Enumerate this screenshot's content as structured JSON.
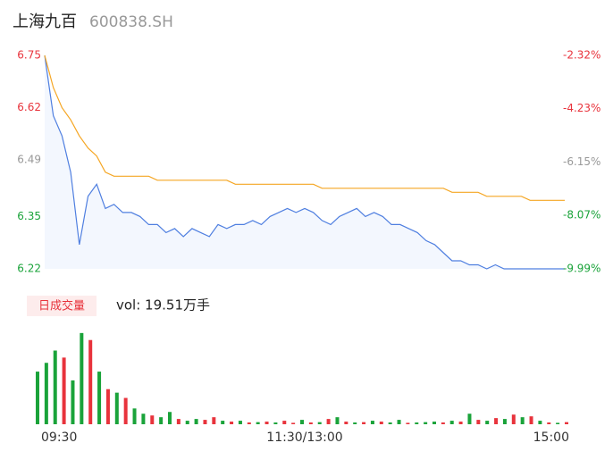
{
  "chart_data": [
    {
      "type": "line",
      "title": "上海九百",
      "subtitle": "600838.SH",
      "xlim": [
        0,
        240
      ],
      "xticks": [
        {
          "value": 0,
          "label": "09:30"
        },
        {
          "value": 120,
          "label": "11:30/13:00"
        },
        {
          "value": 240,
          "label": "15:00"
        }
      ],
      "x": [
        0,
        4,
        8,
        12,
        16,
        20,
        24,
        28,
        32,
        36,
        40,
        44,
        48,
        52,
        56,
        60,
        64,
        68,
        72,
        76,
        80,
        84,
        88,
        92,
        96,
        100,
        104,
        108,
        112,
        116,
        120,
        124,
        128,
        132,
        136,
        140,
        144,
        148,
        152,
        156,
        160,
        164,
        168,
        172,
        176,
        180,
        184,
        188,
        192,
        196,
        200,
        204,
        208,
        212,
        216,
        220,
        224,
        228,
        232,
        236,
        240
      ],
      "ylim": [
        6.22,
        6.75
      ],
      "yticks": [
        6.75,
        6.62,
        6.49,
        6.35,
        6.22
      ],
      "ytick_colors": [
        "#e8333c",
        "#e8333c",
        "#999999",
        "#1aa33a",
        "#1aa33a"
      ],
      "y2lim": [
        -9.99,
        -2.32
      ],
      "y2ticks": [
        {
          "value": -2.32,
          "label": "-2.32%"
        },
        {
          "value": -4.23,
          "label": "-4.23%"
        },
        {
          "value": -6.15,
          "label": "-6.15%"
        },
        {
          "value": -8.07,
          "label": "-8.07%"
        },
        {
          "value": -9.99,
          "label": "-9.99%"
        }
      ],
      "series": [
        {
          "color": "#4f7fe0",
          "area": true,
          "values": [
            6.75,
            6.6,
            6.55,
            6.46,
            6.28,
            6.4,
            6.43,
            6.37,
            6.38,
            6.36,
            6.36,
            6.35,
            6.33,
            6.33,
            6.31,
            6.32,
            6.3,
            6.32,
            6.31,
            6.3,
            6.33,
            6.32,
            6.33,
            6.33,
            6.34,
            6.33,
            6.35,
            6.36,
            6.37,
            6.36,
            6.37,
            6.36,
            6.34,
            6.33,
            6.35,
            6.36,
            6.37,
            6.35,
            6.36,
            6.35,
            6.33,
            6.33,
            6.32,
            6.31,
            6.29,
            6.28,
            6.26,
            6.24,
            6.24,
            6.23,
            6.23,
            6.22,
            6.23,
            6.22,
            6.22,
            6.22,
            6.22,
            6.22,
            6.22,
            6.22,
            6.22
          ]
        },
        {
          "color": "#f5a623",
          "area": false,
          "values": [
            6.75,
            6.67,
            6.62,
            6.59,
            6.55,
            6.52,
            6.5,
            6.46,
            6.45,
            6.45,
            6.45,
            6.45,
            6.45,
            6.44,
            6.44,
            6.44,
            6.44,
            6.44,
            6.44,
            6.44,
            6.44,
            6.44,
            6.43,
            6.43,
            6.43,
            6.43,
            6.43,
            6.43,
            6.43,
            6.43,
            6.43,
            6.43,
            6.42,
            6.42,
            6.42,
            6.42,
            6.42,
            6.42,
            6.42,
            6.42,
            6.42,
            6.42,
            6.42,
            6.42,
            6.42,
            6.42,
            6.42,
            6.41,
            6.41,
            6.41,
            6.41,
            6.4,
            6.4,
            6.4,
            6.4,
            6.4,
            6.39,
            6.39,
            6.39,
            6.39,
            6.39
          ]
        }
      ]
    },
    {
      "type": "bar",
      "title": "日成交量",
      "subtitle": "vol: 19.51万手",
      "xlim": [
        0,
        240
      ],
      "x": [
        0,
        4,
        8,
        12,
        16,
        20,
        24,
        28,
        32,
        36,
        40,
        44,
        48,
        52,
        56,
        60,
        64,
        68,
        72,
        76,
        80,
        84,
        88,
        92,
        96,
        100,
        104,
        108,
        112,
        116,
        120,
        124,
        128,
        132,
        136,
        140,
        144,
        148,
        152,
        156,
        160,
        164,
        168,
        172,
        176,
        180,
        184,
        188,
        192,
        196,
        200,
        204,
        208,
        212,
        216,
        220,
        224,
        228,
        232,
        236,
        240
      ],
      "ylim": [
        0,
        560
      ],
      "values": [
        300,
        350,
        420,
        380,
        250,
        520,
        480,
        300,
        200,
        180,
        150,
        90,
        60,
        50,
        40,
        70,
        30,
        20,
        30,
        25,
        40,
        20,
        15,
        20,
        10,
        12,
        15,
        10,
        20,
        8,
        25,
        10,
        12,
        30,
        40,
        15,
        10,
        12,
        20,
        15,
        10,
        25,
        8,
        10,
        12,
        15,
        10,
        20,
        15,
        60,
        25,
        20,
        35,
        30,
        55,
        40,
        45,
        20,
        10,
        8,
        12
      ],
      "colors": [
        "#1aa33a",
        "#1aa33a",
        "#1aa33a",
        "#e8333c",
        "#1aa33a",
        "#1aa33a",
        "#e8333c",
        "#1aa33a",
        "#e8333c",
        "#1aa33a",
        "#e8333c",
        "#1aa33a",
        "#1aa33a",
        "#e8333c",
        "#1aa33a",
        "#1aa33a",
        "#e8333c",
        "#1aa33a",
        "#1aa33a",
        "#e8333c",
        "#e8333c",
        "#1aa33a",
        "#e8333c",
        "#1aa33a",
        "#e8333c",
        "#1aa33a",
        "#e8333c",
        "#1aa33a",
        "#e8333c",
        "#e8333c",
        "#1aa33a",
        "#e8333c",
        "#1aa33a",
        "#e8333c",
        "#1aa33a",
        "#e8333c",
        "#1aa33a",
        "#e8333c",
        "#1aa33a",
        "#e8333c",
        "#1aa33a",
        "#1aa33a",
        "#e8333c",
        "#1aa33a",
        "#1aa33a",
        "#1aa33a",
        "#e8333c",
        "#1aa33a",
        "#e8333c",
        "#1aa33a",
        "#e8333c",
        "#1aa33a",
        "#e8333c",
        "#1aa33a",
        "#e8333c",
        "#1aa33a",
        "#e8333c",
        "#1aa33a",
        "#e8333c",
        "#1aa33a",
        "#e8333c"
      ]
    }
  ]
}
